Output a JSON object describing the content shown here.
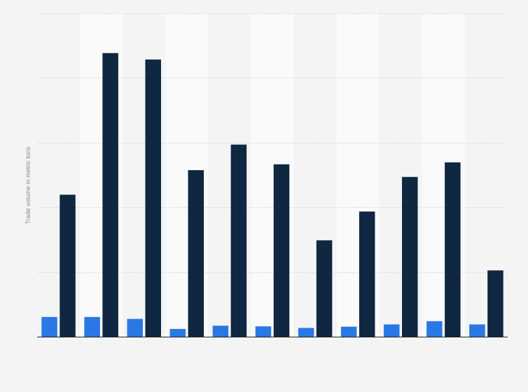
{
  "chart_data": {
    "type": "bar",
    "title": "",
    "xlabel": "",
    "ylabel": "Trade volume in metric tons",
    "ylim": [
      0,
      1000
    ],
    "grid": true,
    "legend": "none",
    "categories": [
      "",
      "",
      "",
      "",
      "",
      "",
      "",
      "",
      "",
      "",
      ""
    ],
    "series": [
      {
        "color": "#2a78e4",
        "values": [
          61,
          61,
          55,
          24,
          34,
          32,
          27,
          31,
          38,
          48,
          38
        ]
      },
      {
        "color": "#0f2740",
        "values": [
          439,
          877,
          857,
          515,
          594,
          533,
          298,
          387,
          494,
          539,
          205
        ]
      }
    ]
  }
}
